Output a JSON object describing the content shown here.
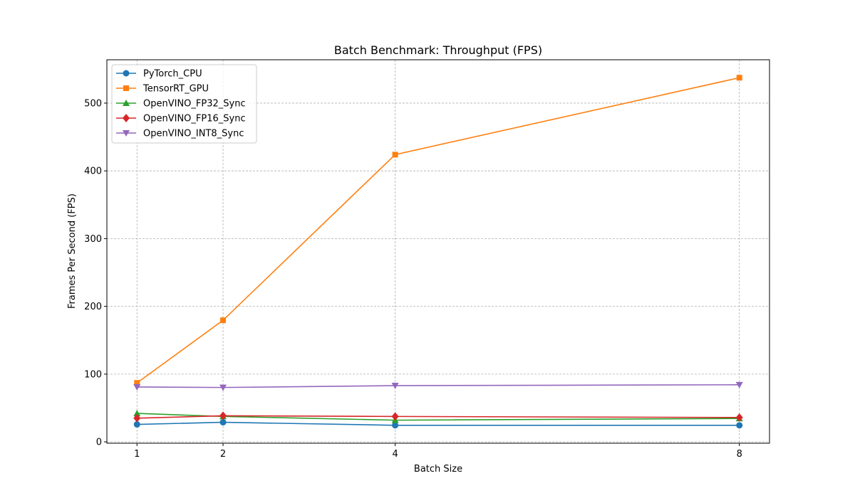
{
  "chart_data": {
    "type": "line",
    "title": "Batch Benchmark: Throughput (FPS)",
    "xlabel": "Batch Size",
    "ylabel": "Frames Per Second (FPS)",
    "x": [
      1,
      2,
      4,
      8
    ],
    "x_ticks": [
      "1",
      "2",
      "4",
      "8"
    ],
    "xlim": [
      0.65,
      8.35
    ],
    "ylim": [
      -2,
      564
    ],
    "y_ticks": [
      0,
      100,
      200,
      300,
      400,
      500
    ],
    "grid": true,
    "legend_position": "top-left",
    "series": [
      {
        "name": "PyTorch_CPU",
        "color": "#1f77b4",
        "marker": "circle",
        "values": [
          25.8,
          28.9,
          24.5,
          24.4
        ]
      },
      {
        "name": "TensorRT_GPU",
        "color": "#ff7f0e",
        "marker": "square",
        "values": [
          87.0,
          179.5,
          424.0,
          537.5
        ]
      },
      {
        "name": "OpenVINO_FP32_Sync",
        "color": "#2ca02c",
        "marker": "triangle-up",
        "values": [
          42.0,
          37.5,
          32.0,
          34.5
        ]
      },
      {
        "name": "OpenVINO_FP16_Sync",
        "color": "#d62728",
        "marker": "diamond",
        "values": [
          35.0,
          38.5,
          37.5,
          36.0
        ]
      },
      {
        "name": "OpenVINO_INT8_Sync",
        "color": "#9467bd",
        "marker": "triangle-down",
        "values": [
          81.0,
          80.3,
          83.0,
          84.3
        ]
      }
    ]
  }
}
